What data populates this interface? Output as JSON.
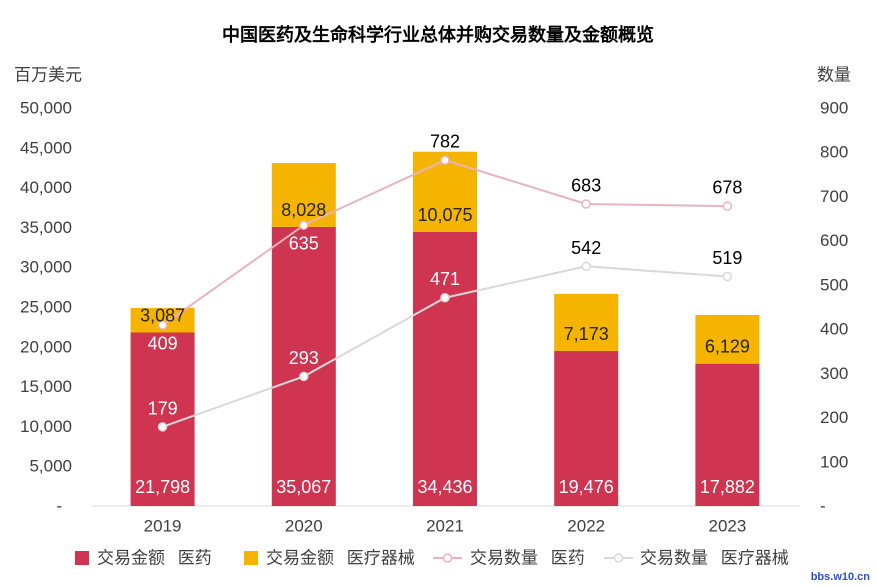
{
  "chart_data": {
    "type": "bar",
    "stacked": true,
    "title": "中国医药及生命科学行业总体并购交易数量及金额概览",
    "categories": [
      "2019",
      "2020",
      "2021",
      "2022",
      "2023"
    ],
    "y_left": {
      "label": "百万美元",
      "range": [
        0,
        50000
      ],
      "ticks": [
        0,
        5000,
        10000,
        15000,
        20000,
        25000,
        30000,
        35000,
        40000,
        45000,
        50000
      ],
      "tick_labels": [
        "-",
        "5,000",
        "10,000",
        "15,000",
        "20,000",
        "25,000",
        "30,000",
        "35,000",
        "40,000",
        "45,000",
        "50,000"
      ]
    },
    "y_right": {
      "label": "数量",
      "range": [
        0,
        900
      ],
      "ticks": [
        0,
        100,
        200,
        300,
        400,
        500,
        600,
        700,
        800,
        900
      ],
      "tick_labels": [
        "-",
        "100",
        "200",
        "300",
        "400",
        "500",
        "600",
        "700",
        "800",
        "900"
      ]
    },
    "grid": false,
    "legend": "bottom",
    "series": [
      {
        "name": "交易金额 医药",
        "type": "bar",
        "color": "#CF3450",
        "values": [
          21798,
          35067,
          34436,
          19476,
          17882
        ]
      },
      {
        "name": "交易金额 医疗器械",
        "type": "bar",
        "color": "#F5B400",
        "values": [
          3087,
          8028,
          10075,
          7173,
          6129
        ]
      },
      {
        "name": "交易数量 医药",
        "type": "line",
        "color": "#E9B3BF",
        "values": [
          409,
          635,
          782,
          683,
          678
        ]
      },
      {
        "name": "交易数量 医疗器械",
        "type": "line",
        "color": "#D9D9D9",
        "values": [
          179,
          293,
          471,
          542,
          519
        ]
      }
    ]
  },
  "watermark": "bbs.w10.cn"
}
